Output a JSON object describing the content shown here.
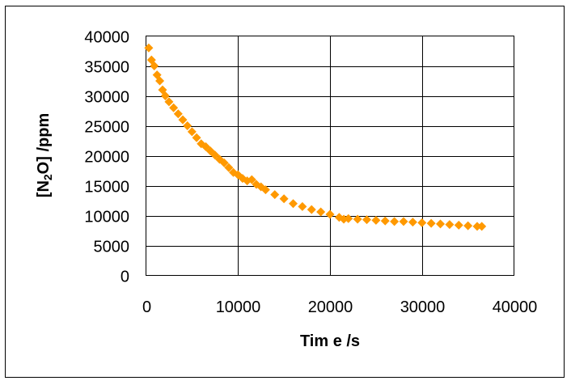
{
  "chart_data": {
    "type": "scatter",
    "title": "",
    "xlabel": "Tim e /s",
    "ylabel_parts": {
      "before": "[N",
      "sub": "2",
      "after": "O] /ppm"
    },
    "xlim": [
      0,
      40000
    ],
    "ylim": [
      0,
      40000
    ],
    "x_ticks": [
      0,
      10000,
      20000,
      30000,
      40000
    ],
    "x_tick_labels": [
      "0",
      "10000",
      "20000",
      "30000",
      "40000"
    ],
    "y_ticks": [
      0,
      5000,
      10000,
      15000,
      20000,
      25000,
      30000,
      35000,
      40000
    ],
    "y_tick_labels": [
      "0",
      "5000",
      "10000",
      "15000",
      "20000",
      "25000",
      "30000",
      "35000",
      "40000"
    ],
    "grid": "horizontal and vertical",
    "legend": "none",
    "marker_color": "#FF9900",
    "series": [
      {
        "marker": "diamond",
        "x": [
          300,
          600,
          900,
          1200,
          1500,
          1800,
          2100,
          2500,
          3000,
          3500,
          4000,
          4500,
          5000,
          5500,
          6000,
          6500,
          7000,
          7500,
          8000,
          8500,
          9000,
          9500,
          10000,
          10500,
          11000,
          11500,
          12000,
          12500,
          13000,
          14000,
          15000,
          16000,
          17000,
          18000,
          19000,
          20000,
          21000,
          21500,
          22000,
          23000,
          24000,
          25000,
          26000,
          27000,
          28000,
          29000,
          30000,
          31000,
          32000,
          33000,
          34000,
          35000,
          36000,
          36500
        ],
        "y": [
          38000,
          36000,
          35000,
          33500,
          32500,
          31000,
          30000,
          29000,
          28000,
          27000,
          26000,
          25000,
          24000,
          23000,
          22000,
          21500,
          20800,
          20100,
          19400,
          18800,
          18000,
          17200,
          16800,
          16200,
          15800,
          16000,
          15200,
          14800,
          14300,
          13500,
          12800,
          12000,
          11500,
          11000,
          10600,
          10200,
          9700,
          9400,
          9500,
          9400,
          9300,
          9200,
          9100,
          9000,
          9000,
          8900,
          8800,
          8700,
          8600,
          8500,
          8400,
          8300,
          8200,
          8200
        ]
      }
    ]
  }
}
